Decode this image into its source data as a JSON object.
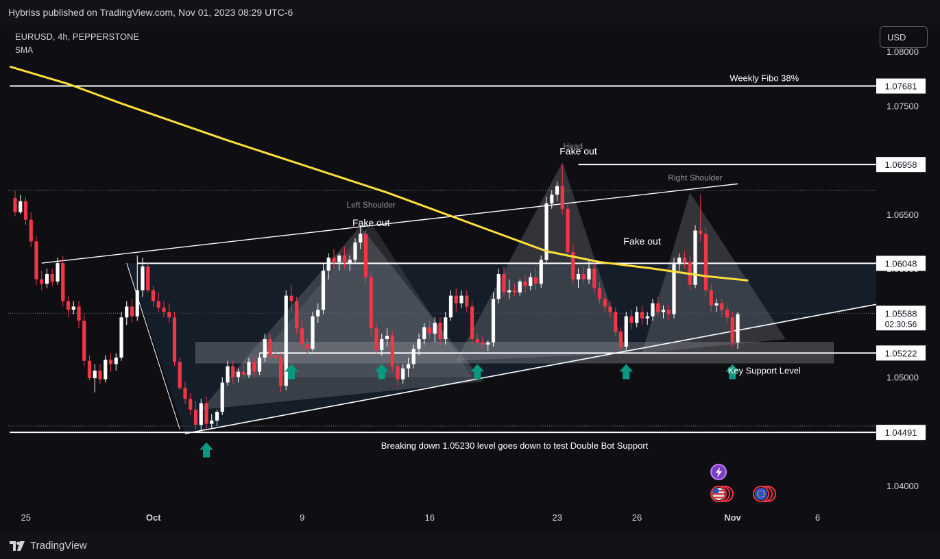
{
  "header": {
    "published": "Hybriss published on TradingView.com, Nov 01, 2023 08:29 UTC-6"
  },
  "symbol": {
    "title": "EURUSD, 4h, PEPPERSTONE",
    "indicator": "SMA"
  },
  "currency_button": "USD",
  "footer": {
    "brand": "TradingView"
  },
  "colors": {
    "bull": "#ffffff",
    "bear": "#f23645",
    "sma": "#fddf3a",
    "arrow": "#089981",
    "background": "#0f0f13"
  },
  "chart_data": {
    "type": "candlestick",
    "instrument": "EURUSD",
    "timeframe": "4h",
    "ylim": [
      1.0365,
      1.081
    ],
    "y_ticks": [
      "1.08000",
      "1.07500",
      "1.07000",
      "1.06500",
      "1.06000",
      "1.05500",
      "1.05000",
      "1.04500",
      "1.04000"
    ],
    "y_tick_values": [
      1.08,
      1.075,
      1.07,
      1.065,
      1.06,
      1.055,
      1.05,
      1.045,
      1.04
    ],
    "x_ticks": [
      {
        "label": "25",
        "bar": 1
      },
      {
        "label": "Oct",
        "bar": 25
      },
      {
        "label": "9",
        "bar": 53
      },
      {
        "label": "16",
        "bar": 77
      },
      {
        "label": "23",
        "bar": 101
      },
      {
        "label": "26",
        "bar": 116
      },
      {
        "label": "Nov",
        "bar": 134
      },
      {
        "label": "6",
        "bar": 150
      }
    ],
    "price_labels": [
      {
        "text": "1.07681",
        "value": 1.07681,
        "style": "box"
      },
      {
        "text": "1.06958",
        "value": 1.06958,
        "style": "box"
      },
      {
        "text": "1.06048",
        "value": 1.06048,
        "style": "box"
      },
      {
        "text": "1.05588",
        "value": 1.05588,
        "style": "box",
        "sub": "02:30:56"
      },
      {
        "text": "1.05222",
        "value": 1.05222,
        "style": "box"
      },
      {
        "text": "1.04491",
        "value": 1.04491,
        "style": "box"
      }
    ],
    "horizontal_lines": [
      {
        "value": 1.07681,
        "from_bar": -1,
        "to_bar": 164,
        "label": "Weekly Fibo  38%",
        "label_bar": 141
      },
      {
        "value": 1.06958,
        "from_bar": 106,
        "to_bar": 164
      },
      {
        "value": 1.06048,
        "from_bar": 23,
        "to_bar": 164
      },
      {
        "value": 1.05222,
        "from_bar": 46,
        "to_bar": 164,
        "label": "Key Support Level",
        "label_bar": 141
      },
      {
        "value": 1.04491,
        "from_bar": -1,
        "to_bar": 164,
        "label": "Breaking down 1.05230 level goes down to test Double Bot Support",
        "label_bar": 94
      }
    ],
    "annotations": [
      {
        "text": "Fake out",
        "bar": 67,
        "value": 1.0639
      },
      {
        "text": "Fake out",
        "bar": 106,
        "value": 1.0705
      },
      {
        "text": "Fake out",
        "bar": 118,
        "value": 1.0622
      },
      {
        "text": "Left Shoulder",
        "bar": 67,
        "value": 1.0656,
        "muted": true
      },
      {
        "text": "Head",
        "bar": 105,
        "value": 1.071,
        "muted": true
      },
      {
        "text": "Right Shoulder",
        "bar": 128,
        "value": 1.0681,
        "muted": true
      }
    ],
    "support_arrows": [
      {
        "bar": 36,
        "value": 1.044
      },
      {
        "bar": 52,
        "value": 1.0512
      },
      {
        "bar": 69,
        "value": 1.0512
      },
      {
        "bar": 87,
        "value": 1.0512
      },
      {
        "bar": 115,
        "value": 1.0512
      },
      {
        "bar": 135,
        "value": 1.0512
      }
    ],
    "candles": [
      [
        1.0665,
        1.0672,
        1.0648,
        1.0652
      ],
      [
        1.0652,
        1.0668,
        1.065,
        1.0662
      ],
      [
        1.0662,
        1.0666,
        1.064,
        1.0645
      ],
      [
        1.0645,
        1.0652,
        1.062,
        1.0625
      ],
      [
        1.0625,
        1.063,
        1.0585,
        1.059
      ],
      [
        1.059,
        1.0598,
        1.058,
        1.0586
      ],
      [
        1.0586,
        1.06,
        1.0582,
        1.0595
      ],
      [
        1.0595,
        1.06,
        1.0584,
        1.0588
      ],
      [
        1.0588,
        1.061,
        1.0585,
        1.0605
      ],
      [
        1.0605,
        1.0612,
        1.0565,
        1.057
      ],
      [
        1.057,
        1.0575,
        1.0555,
        1.0562
      ],
      [
        1.0562,
        1.057,
        1.0558,
        1.0565
      ],
      [
        1.0565,
        1.057,
        1.0545,
        1.0552
      ],
      [
        1.0552,
        1.0558,
        1.051,
        1.0515
      ],
      [
        1.0515,
        1.052,
        1.0497,
        1.0499
      ],
      [
        1.0499,
        1.0512,
        1.0486,
        1.0506
      ],
      [
        1.0506,
        1.0512,
        1.0494,
        1.0498
      ],
      [
        1.0498,
        1.052,
        1.0495,
        1.0516
      ],
      [
        1.0516,
        1.0522,
        1.0505,
        1.0512
      ],
      [
        1.0512,
        1.0522,
        1.0506,
        1.0518
      ],
      [
        1.0518,
        1.056,
        1.0515,
        1.0555
      ],
      [
        1.0555,
        1.057,
        1.0548,
        1.0565
      ],
      [
        1.0565,
        1.0572,
        1.055,
        1.0556
      ],
      [
        1.0556,
        1.0612,
        1.0552,
        1.058
      ],
      [
        1.058,
        1.061,
        1.0574,
        1.0602
      ],
      [
        1.0602,
        1.0605,
        1.0578,
        1.058
      ],
      [
        1.058,
        1.0584,
        1.0565,
        1.057
      ],
      [
        1.057,
        1.0578,
        1.056,
        1.0564
      ],
      [
        1.0564,
        1.057,
        1.0555,
        1.056
      ],
      [
        1.056,
        1.0568,
        1.055,
        1.0555
      ],
      [
        1.0555,
        1.056,
        1.051,
        1.0514
      ],
      [
        1.0514,
        1.0518,
        1.0488,
        1.049
      ],
      [
        1.049,
        1.0496,
        1.0475,
        1.048
      ],
      [
        1.048,
        1.0485,
        1.0465,
        1.047
      ],
      [
        1.047,
        1.0478,
        1.0452,
        1.0456
      ],
      [
        1.0456,
        1.048,
        1.045,
        1.0476
      ],
      [
        1.0476,
        1.0482,
        1.0452,
        1.0457
      ],
      [
        1.0457,
        1.0466,
        1.0452,
        1.046
      ],
      [
        1.046,
        1.047,
        1.0455,
        1.0468
      ],
      [
        1.0468,
        1.05,
        1.0465,
        1.0495
      ],
      [
        1.0495,
        1.0515,
        1.0492,
        1.051
      ],
      [
        1.051,
        1.0515,
        1.0494,
        1.05
      ],
      [
        1.05,
        1.0508,
        1.0495,
        1.0505
      ],
      [
        1.0505,
        1.0512,
        1.0498,
        1.0502
      ],
      [
        1.0502,
        1.0518,
        1.0499,
        1.0514
      ],
      [
        1.0514,
        1.052,
        1.05,
        1.0505
      ],
      [
        1.0505,
        1.0522,
        1.0502,
        1.0518
      ],
      [
        1.0518,
        1.054,
        1.0514,
        1.0535
      ],
      [
        1.0535,
        1.054,
        1.0516,
        1.052
      ],
      [
        1.052,
        1.0528,
        1.0512,
        1.0518
      ],
      [
        1.0518,
        1.0522,
        1.0486,
        1.0492
      ],
      [
        1.0492,
        1.058,
        1.0488,
        1.0575
      ],
      [
        1.0575,
        1.0585,
        1.056,
        1.057
      ],
      [
        1.057,
        1.0574,
        1.054,
        1.0545
      ],
      [
        1.0545,
        1.0552,
        1.0525,
        1.053
      ],
      [
        1.053,
        1.0536,
        1.0518,
        1.0526
      ],
      [
        1.0526,
        1.056,
        1.0524,
        1.0556
      ],
      [
        1.0556,
        1.0568,
        1.055,
        1.0562
      ],
      [
        1.0562,
        1.0605,
        1.0558,
        1.0598
      ],
      [
        1.0598,
        1.0614,
        1.059,
        1.061
      ],
      [
        1.061,
        1.0618,
        1.06,
        1.0606
      ],
      [
        1.0606,
        1.0614,
        1.0598,
        1.0612
      ],
      [
        1.0612,
        1.062,
        1.06,
        1.0605
      ],
      [
        1.0605,
        1.0612,
        1.0598,
        1.0608
      ],
      [
        1.0608,
        1.0628,
        1.0604,
        1.0624
      ],
      [
        1.0624,
        1.064,
        1.0618,
        1.0632
      ],
      [
        1.0632,
        1.0636,
        1.0585,
        1.0592
      ],
      [
        1.0592,
        1.0598,
        1.0538,
        1.0545
      ],
      [
        1.0545,
        1.055,
        1.0522,
        1.0525
      ],
      [
        1.0525,
        1.054,
        1.052,
        1.0535
      ],
      [
        1.0535,
        1.0545,
        1.0528,
        1.0538
      ],
      [
        1.0538,
        1.0542,
        1.0505,
        1.051
      ],
      [
        1.051,
        1.0515,
        1.0492,
        1.0498
      ],
      [
        1.0498,
        1.0512,
        1.0494,
        1.0508
      ],
      [
        1.0508,
        1.0518,
        1.05,
        1.0512
      ],
      [
        1.0512,
        1.053,
        1.0508,
        1.0526
      ],
      [
        1.0526,
        1.054,
        1.052,
        1.0535
      ],
      [
        1.0535,
        1.055,
        1.053,
        1.0546
      ],
      [
        1.0546,
        1.0552,
        1.0535,
        1.054
      ],
      [
        1.054,
        1.0555,
        1.0532,
        1.055
      ],
      [
        1.055,
        1.0555,
        1.053,
        1.0535
      ],
      [
        1.0535,
        1.056,
        1.053,
        1.0555
      ],
      [
        1.0555,
        1.058,
        1.0552,
        1.0575
      ],
      [
        1.0575,
        1.0582,
        1.056,
        1.0568
      ],
      [
        1.0568,
        1.058,
        1.0564,
        1.0575
      ],
      [
        1.0575,
        1.058,
        1.056,
        1.0565
      ],
      [
        1.0565,
        1.057,
        1.053,
        1.0535
      ],
      [
        1.0535,
        1.054,
        1.0528,
        1.0532
      ],
      [
        1.0532,
        1.0538,
        1.0526,
        1.053
      ],
      [
        1.053,
        1.0534,
        1.0524,
        1.0532
      ],
      [
        1.0532,
        1.0578,
        1.0528,
        1.0572
      ],
      [
        1.0572,
        1.06,
        1.0568,
        1.0595
      ],
      [
        1.0595,
        1.0602,
        1.0574,
        1.0578
      ],
      [
        1.0578,
        1.059,
        1.0572,
        1.058
      ],
      [
        1.058,
        1.0586,
        1.0574,
        1.0578
      ],
      [
        1.0578,
        1.059,
        1.0575,
        1.0588
      ],
      [
        1.0588,
        1.0594,
        1.0578,
        1.0584
      ],
      [
        1.0584,
        1.0596,
        1.058,
        1.0592
      ],
      [
        1.0592,
        1.06,
        1.058,
        1.0586
      ],
      [
        1.0586,
        1.0612,
        1.0582,
        1.0608
      ],
      [
        1.0608,
        1.0666,
        1.0604,
        1.066
      ],
      [
        1.066,
        1.0672,
        1.0655,
        1.0668
      ],
      [
        1.0668,
        1.068,
        1.0662,
        1.0676
      ],
      [
        1.0676,
        1.0696,
        1.065,
        1.0655
      ],
      [
        1.0655,
        1.066,
        1.061,
        1.0615
      ],
      [
        1.0615,
        1.0622,
        1.0585,
        1.059
      ],
      [
        1.059,
        1.06,
        1.0582,
        1.0595
      ],
      [
        1.0595,
        1.0602,
        1.0586,
        1.059
      ],
      [
        1.059,
        1.0608,
        1.0586,
        1.06
      ],
      [
        1.06,
        1.0606,
        1.0578,
        1.0582
      ],
      [
        1.0582,
        1.0588,
        1.0568,
        1.0572
      ],
      [
        1.0572,
        1.0578,
        1.056,
        1.0565
      ],
      [
        1.0565,
        1.057,
        1.0555,
        1.056
      ],
      [
        1.056,
        1.0564,
        1.0538,
        1.0542
      ],
      [
        1.0542,
        1.0546,
        1.0525,
        1.0528
      ],
      [
        1.0528,
        1.056,
        1.0524,
        1.0556
      ],
      [
        1.0556,
        1.0562,
        1.0544,
        1.055
      ],
      [
        1.055,
        1.0565,
        1.0546,
        1.056
      ],
      [
        1.056,
        1.0566,
        1.0548,
        1.0554
      ],
      [
        1.0554,
        1.056,
        1.0548,
        1.0556
      ],
      [
        1.0556,
        1.0572,
        1.0552,
        1.0568
      ],
      [
        1.0568,
        1.0574,
        1.0556,
        1.056
      ],
      [
        1.056,
        1.0566,
        1.0554,
        1.0562
      ],
      [
        1.0562,
        1.0566,
        1.0552,
        1.0558
      ],
      [
        1.0558,
        1.061,
        1.0554,
        1.0604
      ],
      [
        1.0604,
        1.0614,
        1.0598,
        1.061
      ],
      [
        1.061,
        1.0616,
        1.06,
        1.0606
      ],
      [
        1.0606,
        1.0612,
        1.058,
        1.0585
      ],
      [
        1.0585,
        1.064,
        1.0582,
        1.0635
      ],
      [
        1.0635,
        1.0668,
        1.0625,
        1.0632
      ],
      [
        1.0632,
        1.0638,
        1.0575,
        1.058
      ],
      [
        1.058,
        1.0585,
        1.056,
        1.0566
      ],
      [
        1.0566,
        1.0572,
        1.056,
        1.0568
      ],
      [
        1.0568,
        1.0572,
        1.0555,
        1.0562
      ],
      [
        1.0562,
        1.0566,
        1.055,
        1.0555
      ],
      [
        1.0555,
        1.056,
        1.0528,
        1.0532
      ],
      [
        1.0532,
        1.056,
        1.0526,
        1.0558
      ]
    ],
    "sma": [
      [
        -1,
        1.0786
      ],
      [
        10,
        1.077
      ],
      [
        20,
        1.0752
      ],
      [
        30,
        1.0735
      ],
      [
        40,
        1.0718
      ],
      [
        50,
        1.0702
      ],
      [
        60,
        1.0686
      ],
      [
        70,
        1.067
      ],
      [
        80,
        1.0652
      ],
      [
        90,
        1.0634
      ],
      [
        100,
        1.0616
      ],
      [
        110,
        1.0606
      ],
      [
        120,
        1.06
      ],
      [
        130,
        1.0593
      ],
      [
        138,
        1.0589
      ]
    ]
  }
}
